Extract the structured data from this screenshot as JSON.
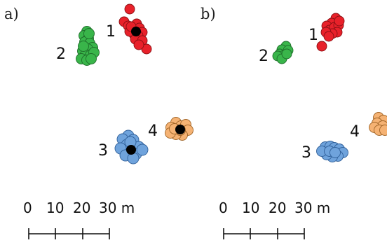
{
  "panels": [
    {
      "label": "a)",
      "clusters": [
        {
          "label": "1",
          "color": "#e8212a",
          "stroke": "#8a1014",
          "has_center": true
        },
        {
          "label": "2",
          "color": "#39b54a",
          "stroke": "#1e6e2a",
          "has_center": false
        },
        {
          "label": "3",
          "color": "#6fa3dc",
          "stroke": "#2f5f99",
          "has_center": true
        },
        {
          "label": "4",
          "color": "#f5b273",
          "stroke": "#a06426",
          "has_center": true
        }
      ],
      "scale_bar": {
        "labels": [
          "0",
          "10",
          "20",
          "30 m"
        ]
      }
    },
    {
      "label": "b)",
      "clusters": [
        {
          "label": "1",
          "color": "#e8212a",
          "stroke": "#8a1014",
          "has_center": false
        },
        {
          "label": "2",
          "color": "#39b54a",
          "stroke": "#1e6e2a",
          "has_center": false
        },
        {
          "label": "3",
          "color": "#6fa3dc",
          "stroke": "#2f5f99",
          "has_center": false
        },
        {
          "label": "4",
          "color": "#f5b273",
          "stroke": "#a06426",
          "has_center": false
        }
      ],
      "scale_bar": {
        "labels": [
          "0",
          "10",
          "20",
          "30 m"
        ]
      }
    }
  ],
  "center_color": "#000000"
}
